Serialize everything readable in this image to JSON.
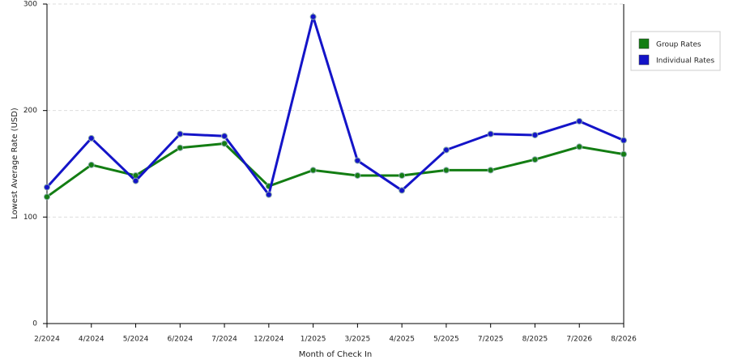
{
  "chart_data": {
    "type": "line",
    "x_label": "Month of Check In",
    "y_label": "Lowest Average Rate (USD)",
    "categories": [
      "2/2024",
      "4/2024",
      "5/2024",
      "6/2024",
      "7/2024",
      "12/2024",
      "1/2025",
      "3/2025",
      "4/2025",
      "5/2025",
      "7/2025",
      "8/2025",
      "7/2026",
      "8/2026"
    ],
    "series": [
      {
        "name": "Group Rates",
        "color": "#137d13",
        "values": [
          119,
          149,
          139,
          165,
          169,
          129,
          144,
          139,
          139,
          144,
          144,
          154,
          166,
          159
        ]
      },
      {
        "name": "Individual Rates",
        "color": "#1414c8",
        "values": [
          128,
          174,
          134,
          178,
          176,
          121,
          288,
          153,
          125,
          163,
          178,
          177,
          190,
          172
        ]
      }
    ],
    "ylim": [
      0,
      300
    ],
    "yticks": [
      0,
      100,
      200,
      300
    ],
    "grid": true,
    "legend": "right"
  }
}
